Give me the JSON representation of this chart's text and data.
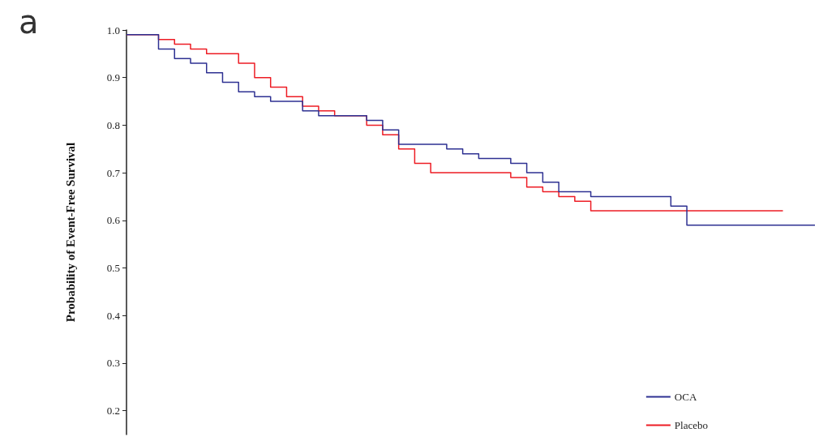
{
  "chart_data": {
    "type": "step",
    "title": "a",
    "ylabel": "Probability of Event-Free Survival",
    "categories": [
      null,
      null,
      null,
      null,
      null,
      null,
      null,
      null,
      null,
      null,
      null,
      null,
      null,
      null,
      null,
      null,
      null,
      null,
      null,
      null,
      null,
      null,
      null,
      null,
      null,
      null,
      null,
      null,
      null,
      null,
      null,
      null,
      null,
      null,
      null,
      null,
      null,
      null,
      null,
      null,
      null,
      null,
      null,
      null
    ],
    "series": [
      {
        "name": "OCA",
        "color": "#2e3192",
        "values": [
          0.99,
          0.99,
          0.96,
          0.94,
          0.93,
          0.91,
          0.89,
          0.87,
          0.86,
          0.85,
          0.85,
          0.83,
          0.82,
          0.82,
          0.82,
          0.81,
          0.79,
          0.76,
          0.76,
          0.76,
          0.75,
          0.74,
          0.73,
          0.73,
          0.72,
          0.7,
          0.68,
          0.66,
          0.66,
          0.65,
          0.65,
          0.65,
          0.65,
          0.65,
          0.63,
          0.59,
          0.59,
          0.59,
          0.59,
          0.59,
          0.59,
          0.59,
          0.59,
          0.59
        ]
      },
      {
        "name": "Placebo",
        "color": "#ed1c24",
        "values": [
          0.99,
          0.99,
          0.98,
          0.97,
          0.96,
          0.95,
          0.95,
          0.93,
          0.9,
          0.88,
          0.86,
          0.84,
          0.83,
          0.82,
          0.82,
          0.8,
          0.78,
          0.75,
          0.72,
          0.7,
          0.7,
          0.7,
          0.7,
          0.7,
          0.69,
          0.67,
          0.66,
          0.65,
          0.64,
          0.62,
          0.62,
          0.62,
          0.62,
          0.62,
          0.62,
          0.62,
          0.62,
          0.62,
          0.62,
          0.62,
          0.62,
          0.62,
          null,
          null
        ]
      }
    ],
    "ylim": [
      0.15,
      1.0
    ],
    "yticks": [
      0.2,
      0.3,
      0.4,
      0.5,
      0.6,
      0.7,
      0.8,
      0.9,
      {
        "value": 1.0,
        "label": "1.0"
      }
    ],
    "grid": false,
    "legend": "bottom right"
  }
}
